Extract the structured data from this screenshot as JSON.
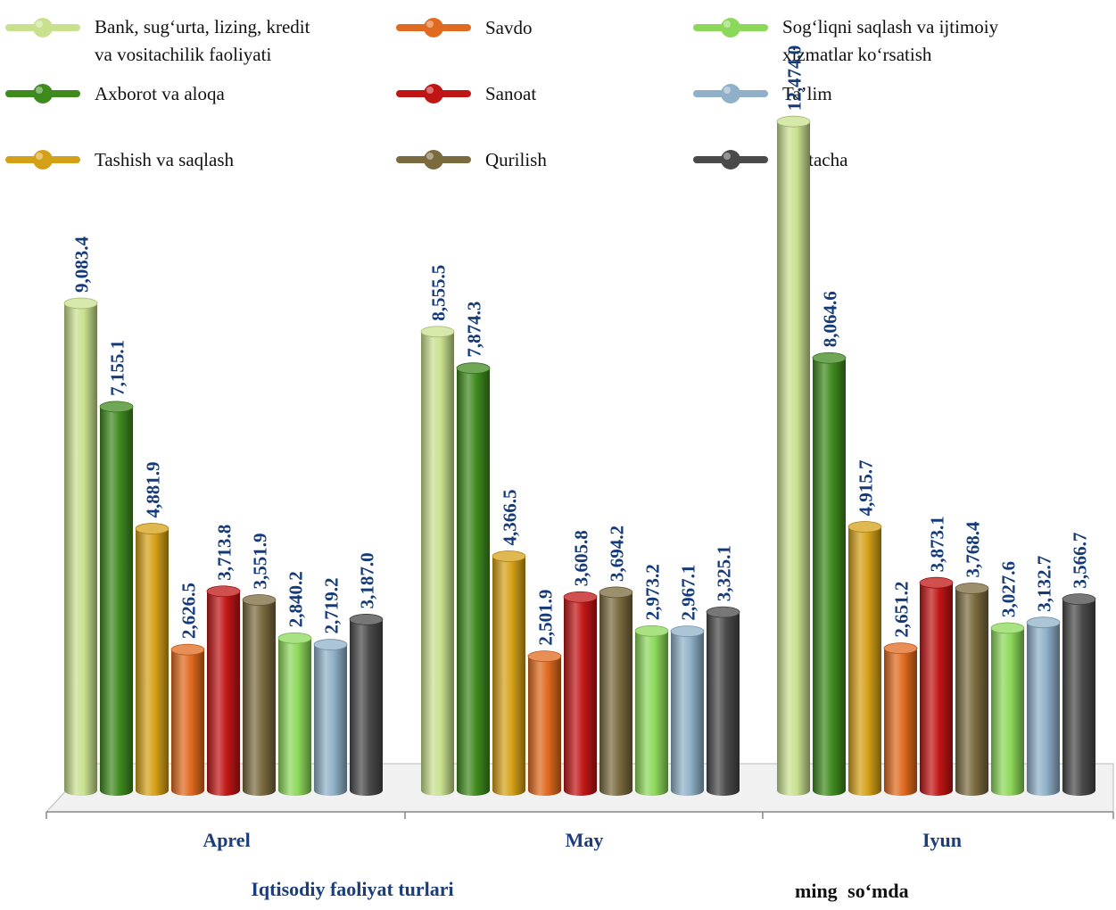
{
  "chart_data": {
    "type": "bar",
    "categories": [
      "Aprel",
      "May",
      "Iyun"
    ],
    "xlabel": "Iqtisodiy faoliyat turlari",
    "unit": "ming so‘mda",
    "series": [
      {
        "name": "Bank, sug‘urta, lizing, kredit va vositachilik faoliyati",
        "legend_lines": [
          "Bank, sug‘urta, lizing, kredit",
          "va vositachilik faoliyati"
        ],
        "color": "#c9e08f",
        "values": [
          9083.4,
          8555.5,
          12474.0
        ],
        "labels": [
          "9,083.4",
          "8,555.5",
          "12,474.0"
        ]
      },
      {
        "name": "Axborot va aloqa",
        "legend_lines": [
          "Axborot va aloqa"
        ],
        "color": "#3f8a1f",
        "values": [
          7155.1,
          7874.3,
          8064.6
        ],
        "labels": [
          "7,155.1",
          "7,874.3",
          "8,064.6"
        ]
      },
      {
        "name": "Tashish va saqlash",
        "legend_lines": [
          "Tashish va saqlash"
        ],
        "color": "#d4a017",
        "values": [
          4881.9,
          4366.5,
          4915.7
        ],
        "labels": [
          "4,881.9",
          "4,366.5",
          "4,915.7"
        ]
      },
      {
        "name": "Savdo",
        "legend_lines": [
          "Savdo"
        ],
        "color": "#e06a1f",
        "values": [
          2626.5,
          2501.9,
          2651.2
        ],
        "labels": [
          "2,626.5",
          "2,501.9",
          "2,651.2"
        ]
      },
      {
        "name": "Sanoat",
        "legend_lines": [
          "Sanoat"
        ],
        "color": "#c01515",
        "values": [
          3713.8,
          3605.8,
          3873.1
        ],
        "labels": [
          "3,713.8",
          "3,605.8",
          "3,873.1"
        ]
      },
      {
        "name": "Qurilish",
        "legend_lines": [
          "Qurilish"
        ],
        "color": "#7a6a3e",
        "values": [
          3551.9,
          3694.2,
          3768.4
        ],
        "labels": [
          "3,551.9",
          "3,694.2",
          "3,768.4"
        ]
      },
      {
        "name": "Sog‘liqni saqlash va ijtimoiy xizmatlar ko‘rsatish",
        "legend_lines": [
          "Sog‘liqni saqlash va ijtimoiy",
          "xizmatlar ko‘rsatish"
        ],
        "color": "#8cd85a",
        "values": [
          2840.2,
          2973.2,
          3027.6
        ],
        "labels": [
          "2,840.2",
          "2,973.2",
          "3,027.6"
        ]
      },
      {
        "name": "Ta’lim",
        "legend_lines": [
          "Ta’lim"
        ],
        "color": "#8fb0c8",
        "values": [
          2719.2,
          2967.1,
          3132.7
        ],
        "labels": [
          "2,719.2",
          "2,967.1",
          "3,132.7"
        ]
      },
      {
        "name": "O‘rtacha",
        "legend_lines": [
          "O‘rtacha"
        ],
        "color": "#4a4a4a",
        "values": [
          3187.0,
          3325.1,
          3566.7
        ],
        "labels": [
          "3,187.0",
          "3,325.1",
          "3,566.7"
        ]
      }
    ],
    "legend_order": [
      0,
      3,
      6,
      1,
      4,
      7,
      2,
      5,
      8
    ],
    "legend_placement": "top",
    "grid": false
  }
}
